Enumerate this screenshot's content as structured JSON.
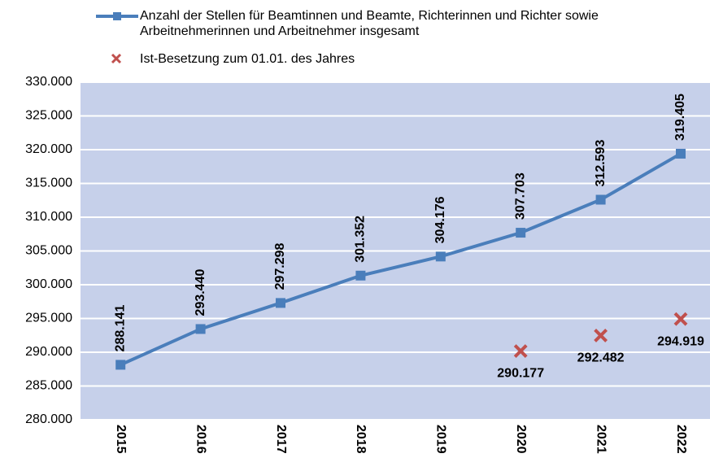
{
  "chart_data": {
    "type": "line",
    "categories": [
      "2015",
      "2016",
      "2017",
      "2018",
      "2019",
      "2020",
      "2021",
      "2022"
    ],
    "series": [
      {
        "name": "Anzahl der Stellen für Beamtinnen und Beamte, Richterinnen und Richter sowie Arbeitnehmerinnen und Arbeitnehmer insgesamt",
        "color": "#4a7ebb",
        "type": "line",
        "values": [
          288141,
          293440,
          297298,
          301352,
          304176,
          307703,
          312593,
          319405
        ],
        "value_labels": [
          "288.141",
          "293.440",
          "297.298",
          "301.352",
          "304.176",
          "307.703",
          "312.593",
          "319.405"
        ]
      },
      {
        "name": "Ist-Besetzung zum 01.01. des Jahres",
        "color": "#c0504d",
        "type": "scatter",
        "values": [
          null,
          null,
          null,
          null,
          null,
          290177,
          292482,
          294919
        ],
        "value_labels": [
          null,
          null,
          null,
          null,
          null,
          "290.177",
          "292.482",
          "294.919"
        ]
      }
    ],
    "ylim": [
      280000,
      330000
    ],
    "yticks": [
      {
        "value": 280000,
        "label": "280.000"
      },
      {
        "value": 285000,
        "label": "285.000"
      },
      {
        "value": 290000,
        "label": "290.000"
      },
      {
        "value": 295000,
        "label": "295.000"
      },
      {
        "value": 300000,
        "label": "300.000"
      },
      {
        "value": 305000,
        "label": "305.000"
      },
      {
        "value": 310000,
        "label": "310.000"
      },
      {
        "value": 315000,
        "label": "315.000"
      },
      {
        "value": 320000,
        "label": "320.000"
      },
      {
        "value": 325000,
        "label": "325.000"
      },
      {
        "value": 330000,
        "label": "330.000"
      }
    ],
    "grid": true,
    "background": "#c6d0ea"
  }
}
